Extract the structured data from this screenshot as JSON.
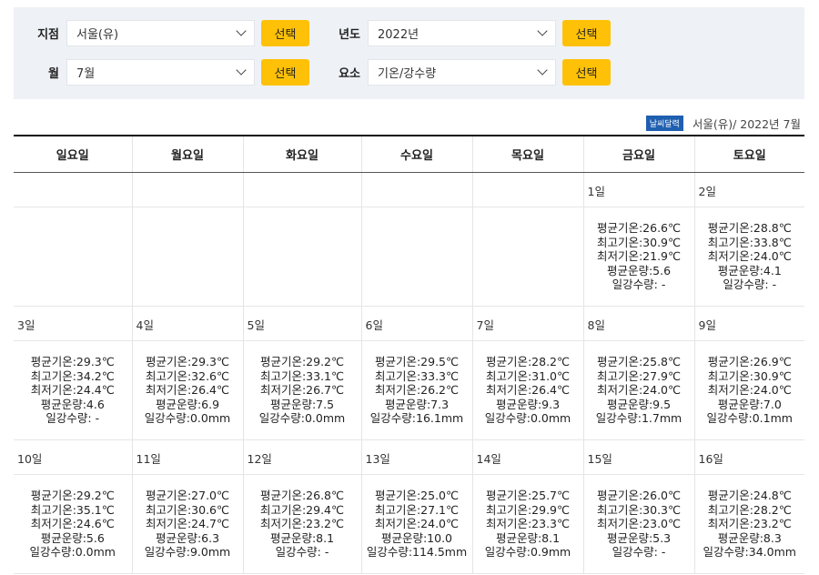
{
  "filters": {
    "station_label": "지점",
    "station_value": "서울(유)",
    "year_label": "년도",
    "year_value": "2022년",
    "month_label": "월",
    "month_value": "7월",
    "element_label": "요소",
    "element_value": "기온/강수량",
    "select_button": "선택"
  },
  "caption": {
    "badge": "날씨달력",
    "text": "서울(유)/ 2022년 7월"
  },
  "weekdays": [
    "일요일",
    "월요일",
    "화요일",
    "수요일",
    "목요일",
    "금요일",
    "토요일"
  ],
  "weeks": [
    [
      {
        "date": "",
        "avg": "",
        "max": "",
        "min": "",
        "cloud": "",
        "rain": ""
      },
      {
        "date": "",
        "avg": "",
        "max": "",
        "min": "",
        "cloud": "",
        "rain": ""
      },
      {
        "date": "",
        "avg": "",
        "max": "",
        "min": "",
        "cloud": "",
        "rain": ""
      },
      {
        "date": "",
        "avg": "",
        "max": "",
        "min": "",
        "cloud": "",
        "rain": ""
      },
      {
        "date": "",
        "avg": "",
        "max": "",
        "min": "",
        "cloud": "",
        "rain": ""
      },
      {
        "date": "1일",
        "avg": "평균기온:26.6℃",
        "max": "최고기온:30.9℃",
        "min": "최저기온:21.9℃",
        "cloud": "평균운량:5.6",
        "rain": "일강수량: -"
      },
      {
        "date": "2일",
        "avg": "평균기온:28.8℃",
        "max": "최고기온:33.8℃",
        "min": "최저기온:24.0℃",
        "cloud": "평균운량:4.1",
        "rain": "일강수량: -"
      }
    ],
    [
      {
        "date": "3일",
        "avg": "평균기온:29.3℃",
        "max": "최고기온:34.2℃",
        "min": "최저기온:24.4℃",
        "cloud": "평균운량:4.6",
        "rain": "일강수량: -"
      },
      {
        "date": "4일",
        "avg": "평균기온:29.3℃",
        "max": "최고기온:32.6℃",
        "min": "최저기온:26.4℃",
        "cloud": "평균운량:6.9",
        "rain": "일강수량:0.0mm"
      },
      {
        "date": "5일",
        "avg": "평균기온:29.2℃",
        "max": "최고기온:33.1℃",
        "min": "최저기온:26.7℃",
        "cloud": "평균운량:7.5",
        "rain": "일강수량:0.0mm"
      },
      {
        "date": "6일",
        "avg": "평균기온:29.5℃",
        "max": "최고기온:33.3℃",
        "min": "최저기온:26.2℃",
        "cloud": "평균운량:7.3",
        "rain": "일강수량:16.1mm"
      },
      {
        "date": "7일",
        "avg": "평균기온:28.2℃",
        "max": "최고기온:31.0℃",
        "min": "최저기온:26.4℃",
        "cloud": "평균운량:9.3",
        "rain": "일강수량:0.0mm"
      },
      {
        "date": "8일",
        "avg": "평균기온:25.8℃",
        "max": "최고기온:27.9℃",
        "min": "최저기온:24.0℃",
        "cloud": "평균운량:9.5",
        "rain": "일강수량:1.7mm"
      },
      {
        "date": "9일",
        "avg": "평균기온:26.9℃",
        "max": "최고기온:30.9℃",
        "min": "최저기온:24.0℃",
        "cloud": "평균운량:7.0",
        "rain": "일강수량:0.1mm"
      }
    ],
    [
      {
        "date": "10일",
        "avg": "평균기온:29.2℃",
        "max": "최고기온:35.1℃",
        "min": "최저기온:24.6℃",
        "cloud": "평균운량:5.6",
        "rain": "일강수량:0.0mm"
      },
      {
        "date": "11일",
        "avg": "평균기온:27.0℃",
        "max": "최고기온:30.6℃",
        "min": "최저기온:24.7℃",
        "cloud": "평균운량:6.3",
        "rain": "일강수량:9.0mm"
      },
      {
        "date": "12일",
        "avg": "평균기온:26.8℃",
        "max": "최고기온:29.4℃",
        "min": "최저기온:23.2℃",
        "cloud": "평균운량:8.1",
        "rain": "일강수량: -"
      },
      {
        "date": "13일",
        "avg": "평균기온:25.0℃",
        "max": "최고기온:27.1℃",
        "min": "최저기온:24.0℃",
        "cloud": "평균운량:10.0",
        "rain": "일강수량:114.5mm"
      },
      {
        "date": "14일",
        "avg": "평균기온:25.7℃",
        "max": "최고기온:29.9℃",
        "min": "최저기온:23.3℃",
        "cloud": "평균운량:8.1",
        "rain": "일강수량:0.9mm"
      },
      {
        "date": "15일",
        "avg": "평균기온:26.0℃",
        "max": "최고기온:30.3℃",
        "min": "최저기온:23.0℃",
        "cloud": "평균운량:5.3",
        "rain": "일강수량: -"
      },
      {
        "date": "16일",
        "avg": "평균기온:24.8℃",
        "max": "최고기온:28.2℃",
        "min": "최저기온:23.2℃",
        "cloud": "평균운량:8.3",
        "rain": "일강수량:34.0mm"
      }
    ]
  ]
}
